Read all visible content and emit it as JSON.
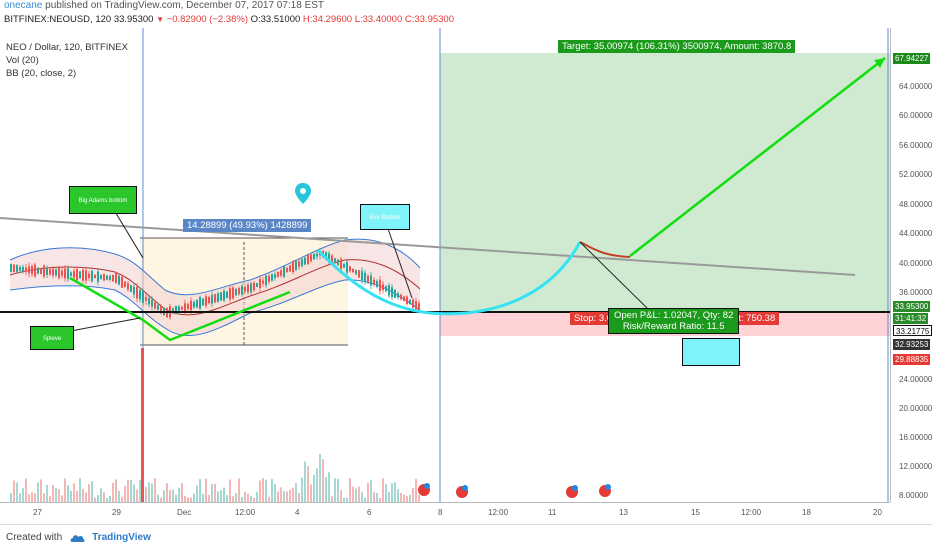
{
  "header": {
    "author": "onecane",
    "published": " published on TradingView.com, December 07, 2017 07:18 EST"
  },
  "symbol_line": {
    "symbol": "BITFINEX:NEOUSD, 120",
    "last": "33.95300",
    "change": "−0.82900 (−2.38%)",
    "open": "O:33.51000",
    "high": "H:34.29600",
    "low": "L:33.40000",
    "close": "C:33.95300"
  },
  "legend": {
    "title": "NEO / Dollar, 120, BITFINEX",
    "vol": "Vol (20)",
    "bb": "BB (20, close, 2)"
  },
  "price_axis": {
    "ticks": [
      "64.00000",
      "60.00000",
      "56.00000",
      "52.00000",
      "48.00000",
      "44.00000",
      "40.00000",
      "36.00000",
      "24.00000",
      "20.00000",
      "16.00000",
      "12.00000",
      "8.00000"
    ],
    "labels": [
      {
        "text": "67.94227",
        "color": "#1b8a1b"
      },
      {
        "text": "33.95300",
        "color": "#2a8a2a"
      },
      {
        "text": "31:41:32",
        "color": "#2a8a2a"
      },
      {
        "text": "33.21775",
        "color": "#111111"
      },
      {
        "text": "32.93253",
        "color": "#333333"
      },
      {
        "text": "29.88835",
        "color": "#e53935"
      }
    ]
  },
  "x_axis": {
    "ticks": [
      "27",
      "29",
      "Dec",
      "12:00",
      "4",
      "6",
      "8",
      "12:00",
      "11",
      "13",
      "15",
      "12:00",
      "18",
      "20"
    ]
  },
  "annotations": {
    "target": "Target: 35.00974 (106.31%) 3500974, Amount: 3870.8",
    "stop": "Stop: 3.04418 (9.24%) 304418, Amount: 750.38",
    "open_pl": "Open P&L: 1.02047, Qty: 82",
    "risk_reward": "Risk/Reward Ratio: 11.5",
    "range": "14.28899 (49.93%) 1428899",
    "callout_big_adam": "Big Adams bottom",
    "callout_eve": "Eve Bottom",
    "callout_sleeve": "Spleve"
  },
  "footer": {
    "created_with": "Created with",
    "brand": "TradingView"
  },
  "colors": {
    "bullish": "#26a69a",
    "bearish": "#ef5350",
    "target_zone": "#c8e6c9",
    "stop_zone": "#ffcdd2",
    "trend_green": "#11dd11",
    "cup_cyan": "#33e3f3",
    "resistance": "#999999"
  }
}
